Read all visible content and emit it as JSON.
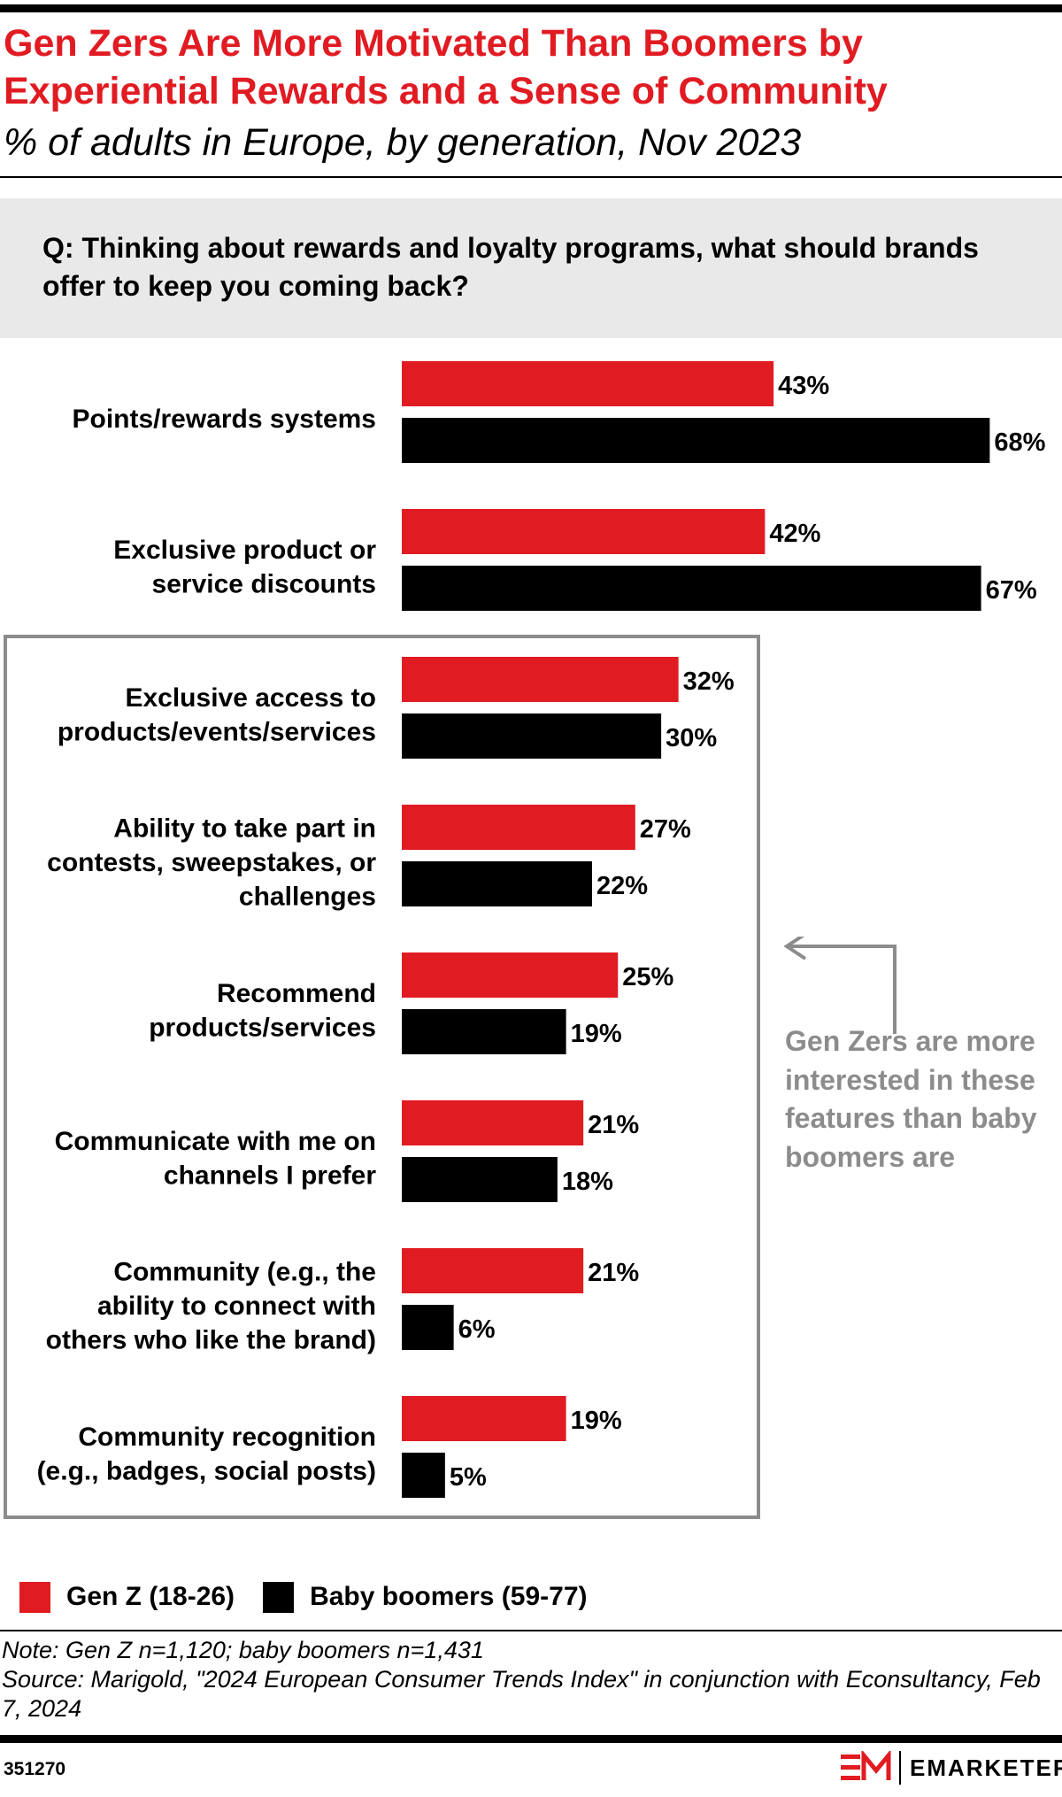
{
  "header": {
    "title": "Gen Zers Are More Motivated Than Boomers by Experiential Rewards and a Sense of Community",
    "subtitle": "% of adults in Europe, by generation, Nov 2023"
  },
  "question": "Q: Thinking about rewards and loyalty programs, what should brands offer to keep you coming back?",
  "callout": "Gen Zers are more interested in these features than baby boomers are",
  "legend": {
    "genz": "Gen Z (18-26)",
    "boomers": "Baby boomers (59-77)"
  },
  "note": "Note: Gen Z n=1,120; baby boomers n=1,431",
  "source": "Source: Marigold, \"2024 European Consumer Trends Index\" in conjunction with Econsultancy, Feb 7, 2024",
  "chart_id": "351270",
  "brand": "EMARKETER",
  "colors": {
    "genz": "#e11b22",
    "boomers": "#000000",
    "callout": "#8c8c8c"
  },
  "chart_data": {
    "type": "bar",
    "orientation": "horizontal",
    "unit": "%",
    "categories": [
      [
        "Points/rewards systems"
      ],
      [
        "Exclusive product or",
        "service discounts"
      ],
      [
        "Exclusive access to",
        "products/events/services"
      ],
      [
        "Ability to take part in",
        "contests, sweepstakes, or",
        "challenges"
      ],
      [
        "Recommend",
        "products/services"
      ],
      [
        "Communicate with me on",
        "channels I prefer"
      ],
      [
        "Community (e.g., the",
        "ability to connect with",
        "others who like the brand)"
      ],
      [
        "Community recognition",
        "(e.g., badges, social posts)"
      ]
    ],
    "series": [
      {
        "name": "Gen Z (18-26)",
        "values": [
          43,
          42,
          32,
          27,
          25,
          21,
          21,
          19
        ]
      },
      {
        "name": "Baby boomers (59-77)",
        "values": [
          68,
          67,
          30,
          22,
          19,
          18,
          6,
          5
        ]
      }
    ],
    "highlighted_categories": [
      2,
      3,
      4,
      5,
      6,
      7
    ],
    "legend_position": "bottom-left",
    "grid": false
  }
}
